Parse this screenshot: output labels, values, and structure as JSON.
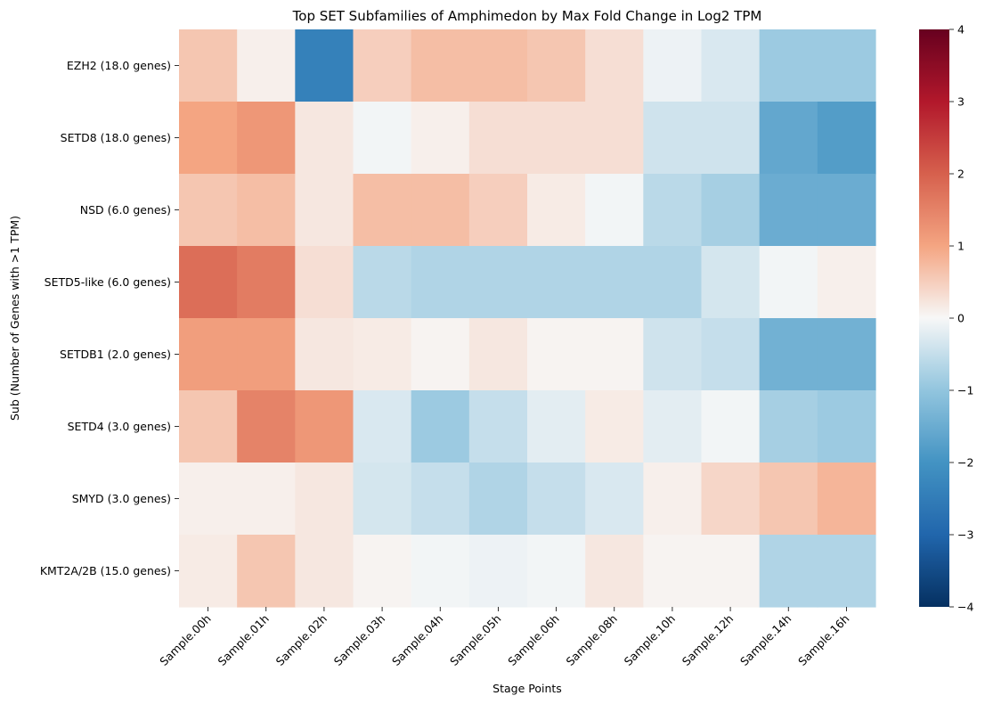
{
  "chart_data": {
    "type": "heatmap",
    "title": "Top SET Subfamilies of Amphimedon by Max Fold Change in Log2 TPM",
    "xlabel": "Stage Points",
    "ylabel": "Sub (Number of Genes with >1 TPM)",
    "x": [
      "Sample.00h",
      "Sample.01h",
      "Sample.02h",
      "Sample.03h",
      "Sample.04h",
      "Sample.05h",
      "Sample.06h",
      "Sample.08h",
      "Sample.10h",
      "Sample.12h",
      "Sample.14h",
      "Sample.16h"
    ],
    "y": [
      "EZH2 (18.0 genes)",
      "SETD8 (18.0 genes)",
      "NSD (6.0 genes)",
      "SETD5-like (6.0 genes)",
      "SETDB1 (2.0 genes)",
      "SETD4 (3.0 genes)",
      "SMYD (3.0 genes)",
      "KMT2A/2B (15.0 genes)"
    ],
    "values": [
      [
        0.6,
        0.1,
        -2.4,
        0.5,
        0.7,
        0.7,
        0.6,
        0.3,
        -0.1,
        -0.3,
        -0.9,
        -0.9
      ],
      [
        1.0,
        1.2,
        0.2,
        -0.05,
        0.1,
        0.3,
        0.3,
        0.3,
        -0.4,
        -0.4,
        -1.6,
        -1.8
      ],
      [
        0.6,
        0.7,
        0.2,
        0.7,
        0.7,
        0.5,
        0.15,
        -0.05,
        -0.6,
        -0.8,
        -1.5,
        -1.5
      ],
      [
        1.8,
        1.6,
        0.3,
        -0.6,
        -0.7,
        -0.7,
        -0.7,
        -0.7,
        -0.7,
        -0.35,
        -0.05,
        0.1
      ],
      [
        1.1,
        1.1,
        0.2,
        0.15,
        0.05,
        0.2,
        0.05,
        0.05,
        -0.4,
        -0.5,
        -1.4,
        -1.4
      ],
      [
        0.6,
        1.5,
        1.2,
        -0.3,
        -0.9,
        -0.5,
        -0.2,
        0.15,
        -0.2,
        -0.05,
        -0.8,
        -0.9
      ],
      [
        0.1,
        0.1,
        0.2,
        -0.35,
        -0.5,
        -0.7,
        -0.5,
        -0.3,
        0.1,
        0.4,
        0.6,
        0.8
      ],
      [
        0.15,
        0.6,
        0.2,
        0.05,
        -0.05,
        -0.1,
        -0.05,
        0.2,
        0.05,
        0.05,
        -0.7,
        -0.7
      ]
    ],
    "colormap": "RdBu_r",
    "vmin": -4,
    "vmax": 4,
    "colorbar_ticks": [
      "4",
      "3",
      "2",
      "1",
      "0",
      "−1",
      "−2",
      "−3",
      "−4"
    ],
    "colorbar_values": [
      4,
      3,
      2,
      1,
      0,
      -1,
      -2,
      -3,
      -4
    ]
  }
}
